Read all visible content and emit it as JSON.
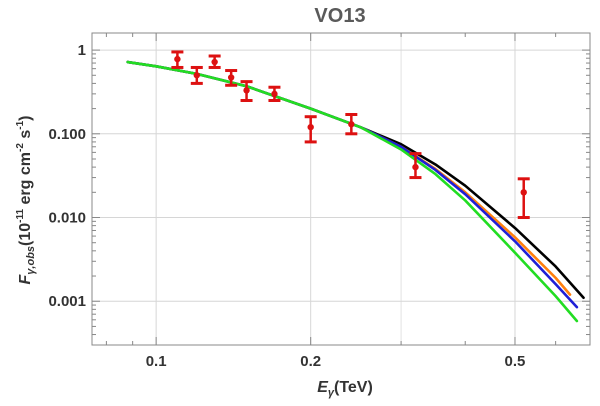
{
  "chart_data": {
    "type": "line",
    "title": "VO13",
    "xscale": "log",
    "yscale": "log",
    "xlim": [
      0.075,
      0.7
    ],
    "ylim": [
      0.0003,
      1.6
    ],
    "grid": true,
    "xlabel": {
      "main": "E",
      "sub": "γ",
      "rest": "(TeV)"
    },
    "ylabel": {
      "main": "F",
      "sub": "γ,obs",
      "rest_a": "(10",
      "sup_a": "-11",
      "rest_b": " erg cm",
      "sup_b": "-2",
      "rest_c": " s",
      "sup_c": "-1",
      "rest_d": ")"
    },
    "x_ticks": [
      {
        "value": 0.1,
        "label": "0.1"
      },
      {
        "value": 0.2,
        "label": "0.2"
      },
      {
        "value": 0.5,
        "label": "0.5"
      }
    ],
    "x_minor_ticks": [
      0.08,
      0.09,
      0.3,
      0.4,
      0.6,
      0.7
    ],
    "y_ticks": [
      {
        "value": 1,
        "label": "1"
      },
      {
        "value": 0.1,
        "label": "0.100"
      },
      {
        "value": 0.01,
        "label": "0.010"
      },
      {
        "value": 0.001,
        "label": "0.001"
      }
    ],
    "series": [
      {
        "name": "black",
        "color": "#000000",
        "x": [
          0.088,
          0.1,
          0.12,
          0.15,
          0.2,
          0.25,
          0.3,
          0.35,
          0.4,
          0.5,
          0.6,
          0.68
        ],
        "y": [
          0.72,
          0.64,
          0.52,
          0.37,
          0.2,
          0.12,
          0.075,
          0.043,
          0.024,
          0.0075,
          0.0026,
          0.0011
        ]
      },
      {
        "name": "orange",
        "color": "#ff7f0e",
        "x": [
          0.088,
          0.1,
          0.12,
          0.15,
          0.2,
          0.25,
          0.3,
          0.35,
          0.4,
          0.5,
          0.6,
          0.64
        ],
        "y": [
          0.72,
          0.64,
          0.52,
          0.37,
          0.2,
          0.12,
          0.07,
          0.038,
          0.02,
          0.0058,
          0.0019,
          0.0012
        ]
      },
      {
        "name": "blue",
        "color": "#1f1fd6",
        "x": [
          0.088,
          0.1,
          0.12,
          0.15,
          0.2,
          0.25,
          0.3,
          0.35,
          0.4,
          0.5,
          0.6,
          0.66
        ],
        "y": [
          0.72,
          0.64,
          0.52,
          0.37,
          0.2,
          0.12,
          0.07,
          0.037,
          0.019,
          0.0052,
          0.0016,
          0.00085
        ]
      },
      {
        "name": "green",
        "color": "#22dd22",
        "x": [
          0.088,
          0.1,
          0.12,
          0.15,
          0.2,
          0.25,
          0.3,
          0.35,
          0.4,
          0.5,
          0.6,
          0.66
        ],
        "y": [
          0.72,
          0.64,
          0.52,
          0.37,
          0.2,
          0.12,
          0.065,
          0.033,
          0.016,
          0.0038,
          0.00115,
          0.00058
        ]
      }
    ],
    "observations": {
      "name": "data",
      "color": "#dd1111",
      "points": [
        {
          "x": 0.11,
          "y": 0.78,
          "low": 0.62,
          "high": 0.95
        },
        {
          "x": 0.12,
          "y": 0.5,
          "low": 0.4,
          "high": 0.62
        },
        {
          "x": 0.13,
          "y": 0.72,
          "low": 0.62,
          "high": 0.85
        },
        {
          "x": 0.14,
          "y": 0.47,
          "low": 0.38,
          "high": 0.57
        },
        {
          "x": 0.15,
          "y": 0.33,
          "low": 0.25,
          "high": 0.42
        },
        {
          "x": 0.17,
          "y": 0.3,
          "low": 0.25,
          "high": 0.36
        },
        {
          "x": 0.2,
          "y": 0.12,
          "low": 0.08,
          "high": 0.16
        },
        {
          "x": 0.24,
          "y": 0.13,
          "low": 0.1,
          "high": 0.17
        },
        {
          "x": 0.32,
          "y": 0.04,
          "low": 0.03,
          "high": 0.058
        },
        {
          "x": 0.52,
          "y": 0.02,
          "low": 0.01,
          "high": 0.029
        }
      ]
    }
  }
}
